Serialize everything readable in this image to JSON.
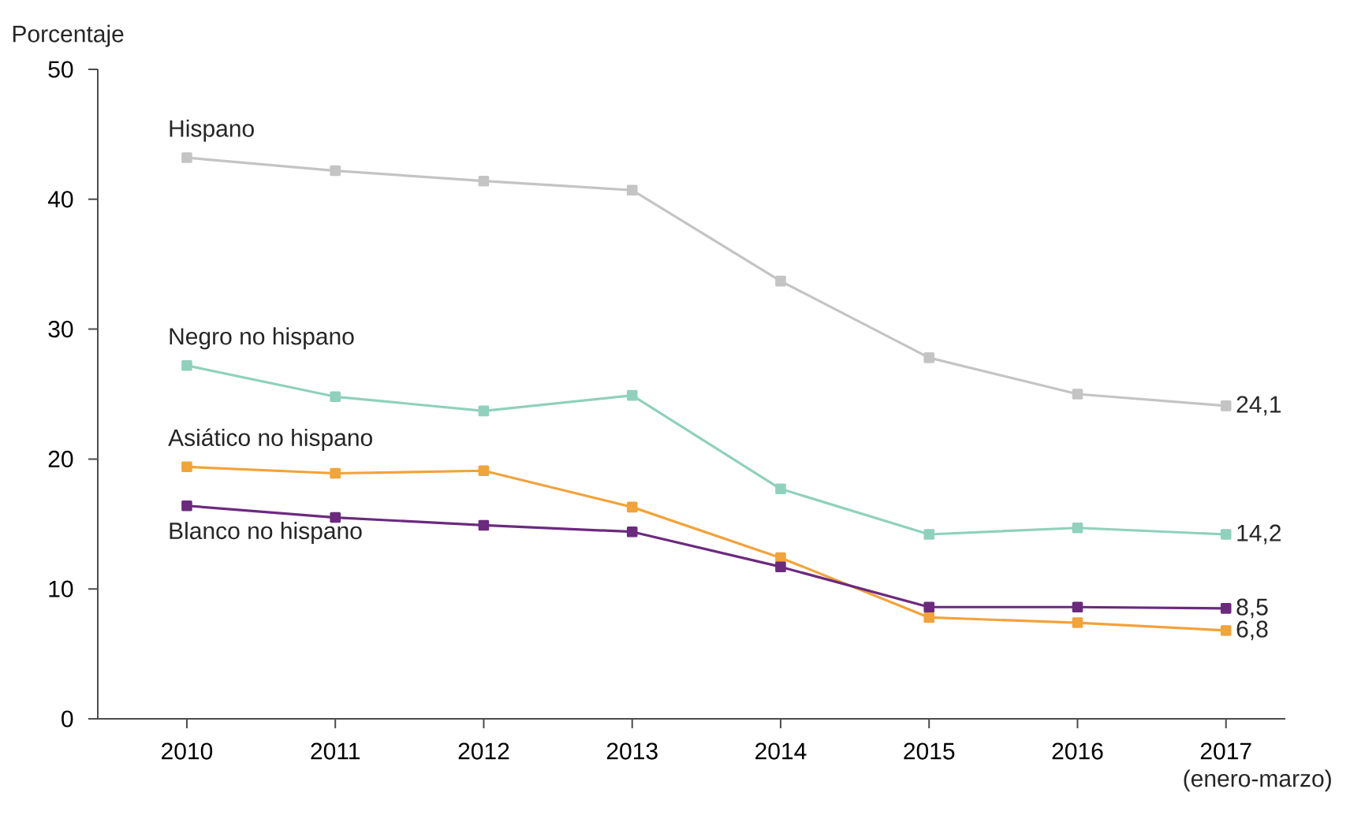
{
  "chart_data": {
    "type": "line",
    "ylabel": "Porcentaje",
    "categories": [
      "2010",
      "2011",
      "2012",
      "2013",
      "2014",
      "2015",
      "2016",
      "2017"
    ],
    "ylim": [
      0,
      50
    ],
    "yticks": [
      0,
      10,
      20,
      30,
      40,
      50
    ],
    "marker": "square",
    "line_style": "solid",
    "grid": false,
    "annotations": [
      "(enero-marzo)"
    ],
    "series": [
      {
        "name": "Hispano",
        "color": "#c4c4c4",
        "values": [
          43.2,
          42.2,
          41.4,
          40.7,
          33.7,
          27.8,
          25.0,
          24.1
        ],
        "value_labels": [
          null,
          null,
          null,
          null,
          null,
          null,
          null,
          "24,1"
        ]
      },
      {
        "name": "Negro no hispano",
        "color": "#8fd1bd",
        "values": [
          27.2,
          24.8,
          23.7,
          24.9,
          17.7,
          14.2,
          14.7,
          14.2
        ],
        "value_labels": [
          null,
          null,
          null,
          null,
          null,
          null,
          null,
          "14,2"
        ]
      },
      {
        "name": "Asiático no hispano",
        "color": "#f2a33a",
        "values": [
          19.4,
          18.9,
          19.1,
          16.3,
          12.4,
          7.8,
          7.4,
          6.8
        ],
        "value_labels": [
          null,
          null,
          null,
          null,
          null,
          null,
          null,
          "6,8"
        ]
      },
      {
        "name": "Blanco no hispano",
        "color": "#6b2a7e",
        "values": [
          16.4,
          15.5,
          14.9,
          14.4,
          11.7,
          8.6,
          8.6,
          8.5
        ],
        "value_labels": [
          null,
          null,
          null,
          null,
          null,
          null,
          null,
          "8,5"
        ]
      }
    ]
  }
}
